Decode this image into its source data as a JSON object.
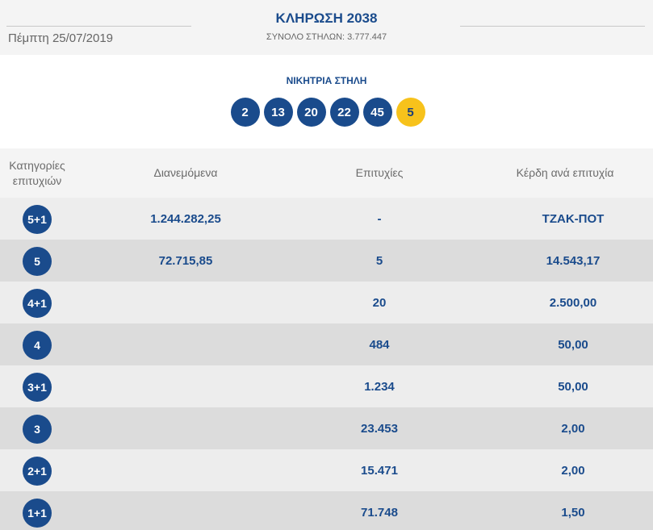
{
  "header": {
    "date": "Πέμπτη 25/07/2019",
    "title": "ΚΛΗΡΩΣΗ 2038",
    "total_columns": "ΣΥΝΟΛΟ ΣΤΗΛΩΝ: 3.777.447"
  },
  "winning": {
    "label": "ΝΙΚΗΤΡΙΑ ΣΤΗΛΗ",
    "numbers": [
      "2",
      "13",
      "20",
      "22",
      "45"
    ],
    "bonus": "5"
  },
  "table": {
    "headers": {
      "category_line1": "Κατηγορίες",
      "category_line2": "επιτυχιών",
      "distributed": "Διανεμόμενα",
      "winners": "Επιτυχίες",
      "prize": "Κέρδη ανά επιτυχία"
    },
    "rows": [
      {
        "category": "5+1",
        "distributed": "1.244.282,25",
        "winners": "-",
        "prize": "ΤΖΑΚ-ΠΟΤ"
      },
      {
        "category": "5",
        "distributed": "72.715,85",
        "winners": "5",
        "prize": "14.543,17"
      },
      {
        "category": "4+1",
        "distributed": "",
        "winners": "20",
        "prize": "2.500,00"
      },
      {
        "category": "4",
        "distributed": "",
        "winners": "484",
        "prize": "50,00"
      },
      {
        "category": "3+1",
        "distributed": "",
        "winners": "1.234",
        "prize": "50,00"
      },
      {
        "category": "3",
        "distributed": "",
        "winners": "23.453",
        "prize": "2,00"
      },
      {
        "category": "2+1",
        "distributed": "",
        "winners": "15.471",
        "prize": "2,00"
      },
      {
        "category": "1+1",
        "distributed": "",
        "winners": "71.748",
        "prize": "1,50"
      }
    ]
  },
  "colors": {
    "brand_blue": "#1a4b8c",
    "bonus_yellow": "#f7c21b"
  }
}
